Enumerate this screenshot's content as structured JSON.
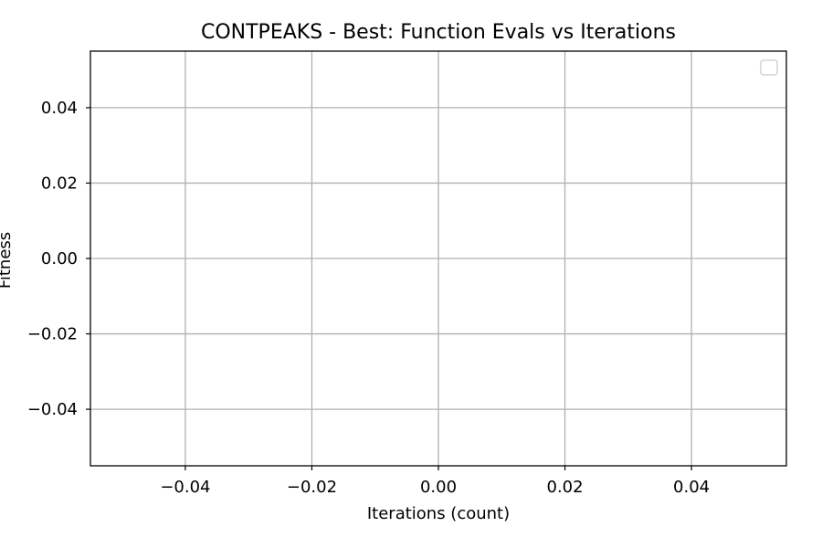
{
  "chart_data": {
    "type": "line",
    "title": "CONTPEAKS - Best: Function Evals vs Iterations",
    "xlabel": "Iterations (count)",
    "ylabel": "Fitness",
    "xlim": [
      -0.055,
      0.055
    ],
    "ylim": [
      -0.055,
      0.055
    ],
    "xticks": [
      -0.04,
      -0.02,
      0.0,
      0.02,
      0.04
    ],
    "yticks": [
      0.04,
      0.02,
      0.0,
      -0.02,
      -0.04
    ],
    "xtick_labels": [
      "−0.04",
      "−0.02",
      "0.00",
      "0.02",
      "0.04"
    ],
    "ytick_labels": [
      "0.04",
      "0.02",
      "0.00",
      "−0.02",
      "−0.04"
    ],
    "grid": true,
    "legend": "upper right",
    "series": []
  },
  "colors": {
    "grid": "#b0b0b0",
    "frame": "#000000",
    "background": "#ffffff",
    "legend_border": "#cccccc"
  }
}
